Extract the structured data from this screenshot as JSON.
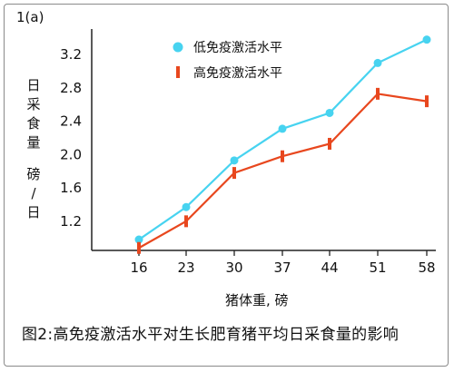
{
  "panel_label": "1(a)",
  "caption": "图2:高免疫激活水平对生长肥育猪平均日采食量的影响",
  "colors": {
    "low": "#47d3f0",
    "high": "#e8471e",
    "axis": "#222222",
    "frame": "#8a8a8a"
  },
  "chart_data": {
    "type": "line",
    "title": "",
    "xlabel": "猪体重, 磅",
    "ylabel_chars": [
      "日",
      "采",
      "食",
      "量",
      "",
      "磅",
      "/",
      "日"
    ],
    "x": [
      16,
      23,
      30,
      37,
      44,
      51,
      58
    ],
    "x_ticks": [
      "16",
      "23",
      "30",
      "37",
      "44",
      "51",
      "58"
    ],
    "y_ticks": [
      "1.2",
      "1.6",
      "2.0",
      "2.4",
      "2.8",
      "3.2"
    ],
    "ylim": [
      0.85,
      3.42
    ],
    "grid": false,
    "legend_placement": "top-right",
    "series": [
      {
        "name": "低免疫激活水平",
        "marker": "circle",
        "values": [
          0.98,
          1.37,
          1.93,
          2.31,
          2.5,
          3.1,
          3.38
        ]
      },
      {
        "name": "高免疫激活水平",
        "marker": "bar",
        "values": [
          0.88,
          1.2,
          1.78,
          1.98,
          2.13,
          2.73,
          2.64
        ]
      }
    ]
  }
}
